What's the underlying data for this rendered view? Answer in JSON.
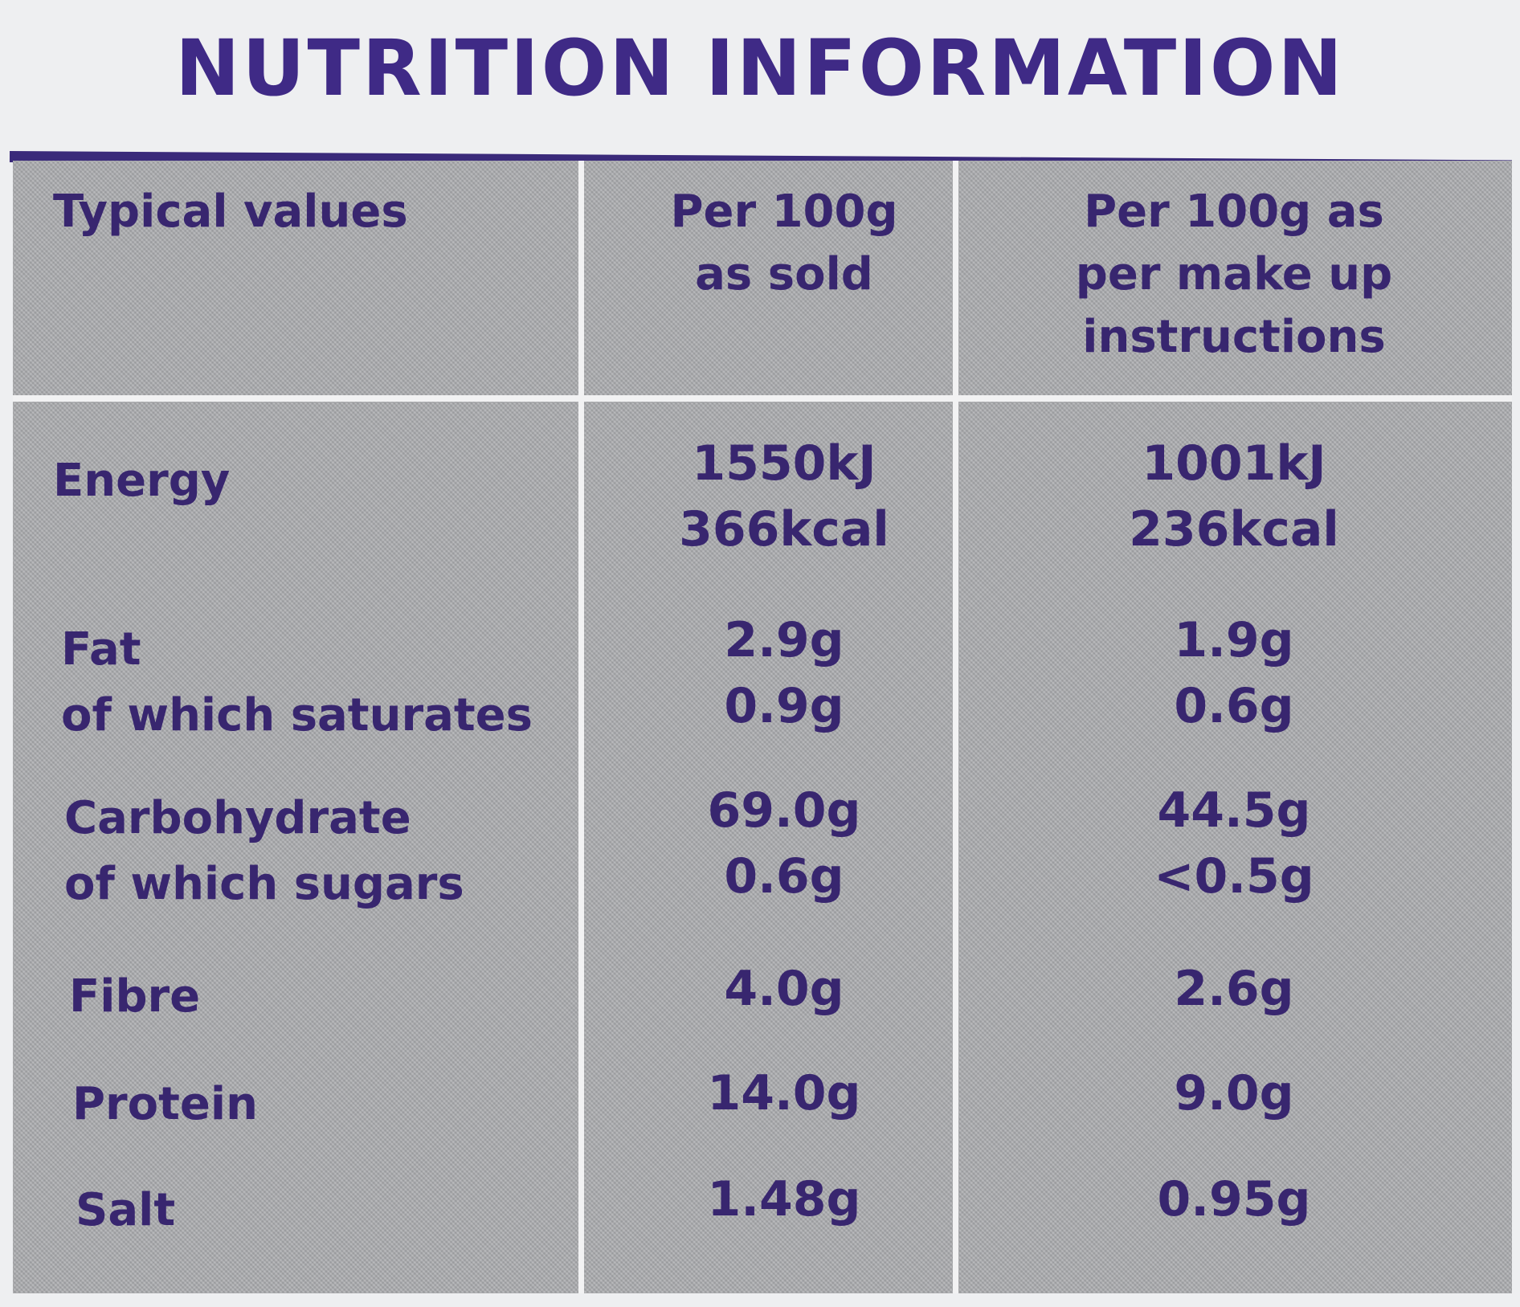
{
  "title": "NUTRITION INFORMATION",
  "table": {
    "headers": [
      [
        "Typical values"
      ],
      [
        "Per 100g",
        "as sold"
      ],
      [
        "Per 100g as",
        "per make up",
        "instructions"
      ]
    ],
    "rows": [
      {
        "labels": [
          "Energy"
        ],
        "sold": [
          "1550kJ",
          "366kcal"
        ],
        "made": [
          "1001kJ",
          "236kcal"
        ]
      },
      {
        "labels": [
          "Fat",
          "of which saturates"
        ],
        "sold": [
          "2.9g",
          "0.9g"
        ],
        "made": [
          "1.9g",
          "0.6g"
        ]
      },
      {
        "labels": [
          "Carbohydrate",
          "of which sugars"
        ],
        "sold": [
          "69.0g",
          "0.6g"
        ],
        "made": [
          "44.5g",
          "<0.5g"
        ]
      },
      {
        "labels": [
          "Fibre"
        ],
        "sold": [
          "4.0g"
        ],
        "made": [
          "2.6g"
        ]
      },
      {
        "labels": [
          "Protein"
        ],
        "sold": [
          "14.0g"
        ],
        "made": [
          "9.0g"
        ]
      },
      {
        "labels": [
          "Salt"
        ],
        "sold": [
          "1.48g"
        ],
        "made": [
          "0.95g"
        ]
      }
    ]
  }
}
